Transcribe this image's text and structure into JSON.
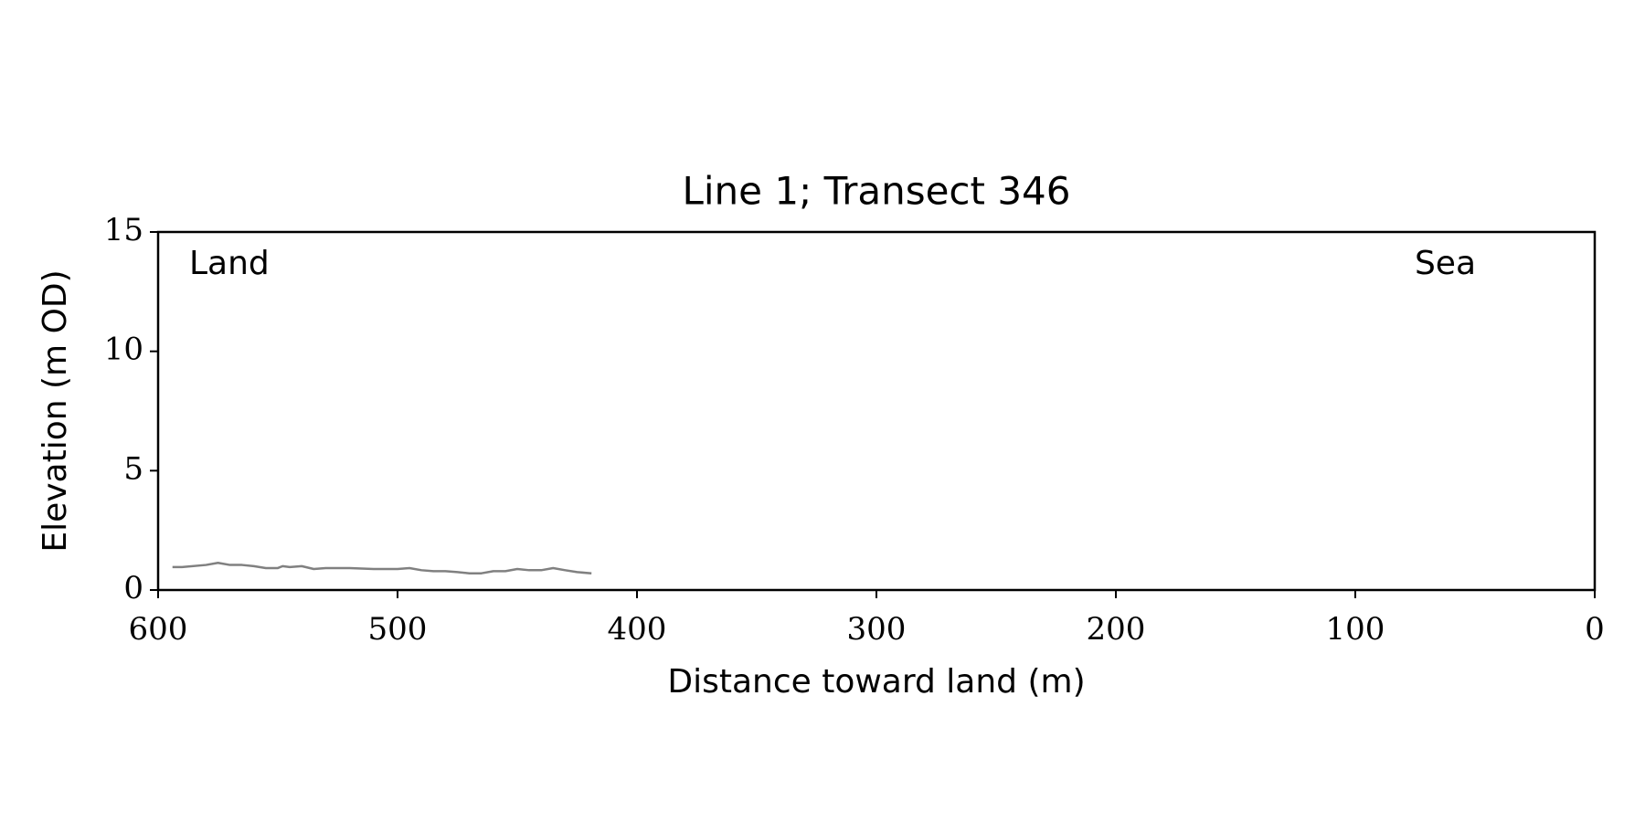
{
  "chart_data": {
    "type": "line",
    "title": "Line 1; Transect 346",
    "xlabel": "Distance toward land (m)",
    "ylabel": "Elevation (m OD)",
    "annotations": [
      "Land",
      "Sea"
    ],
    "x": [
      594,
      590,
      580,
      575,
      570,
      565,
      560,
      555,
      550,
      548,
      545,
      540,
      535,
      530,
      520,
      510,
      500,
      495,
      490,
      485,
      480,
      475,
      470,
      465,
      460,
      455,
      450,
      445,
      440,
      435,
      430,
      425,
      419
    ],
    "series": [
      {
        "color": "#808080",
        "values": [
          0.96,
          0.96,
          1.05,
          1.14,
          1.05,
          1.05,
          1.0,
          0.92,
          0.92,
          1.0,
          0.96,
          1.0,
          0.88,
          0.92,
          0.92,
          0.88,
          0.88,
          0.92,
          0.83,
          0.79,
          0.79,
          0.75,
          0.7,
          0.7,
          0.79,
          0.79,
          0.88,
          0.83,
          0.83,
          0.92,
          0.83,
          0.75,
          0.7
        ]
      }
    ],
    "xlim": [
      600,
      0
    ],
    "ylim": [
      0,
      15
    ],
    "xticks": [
      600,
      500,
      400,
      300,
      200,
      100,
      0
    ],
    "yticks": [
      0,
      5,
      10,
      15
    ],
    "grid": false
  }
}
